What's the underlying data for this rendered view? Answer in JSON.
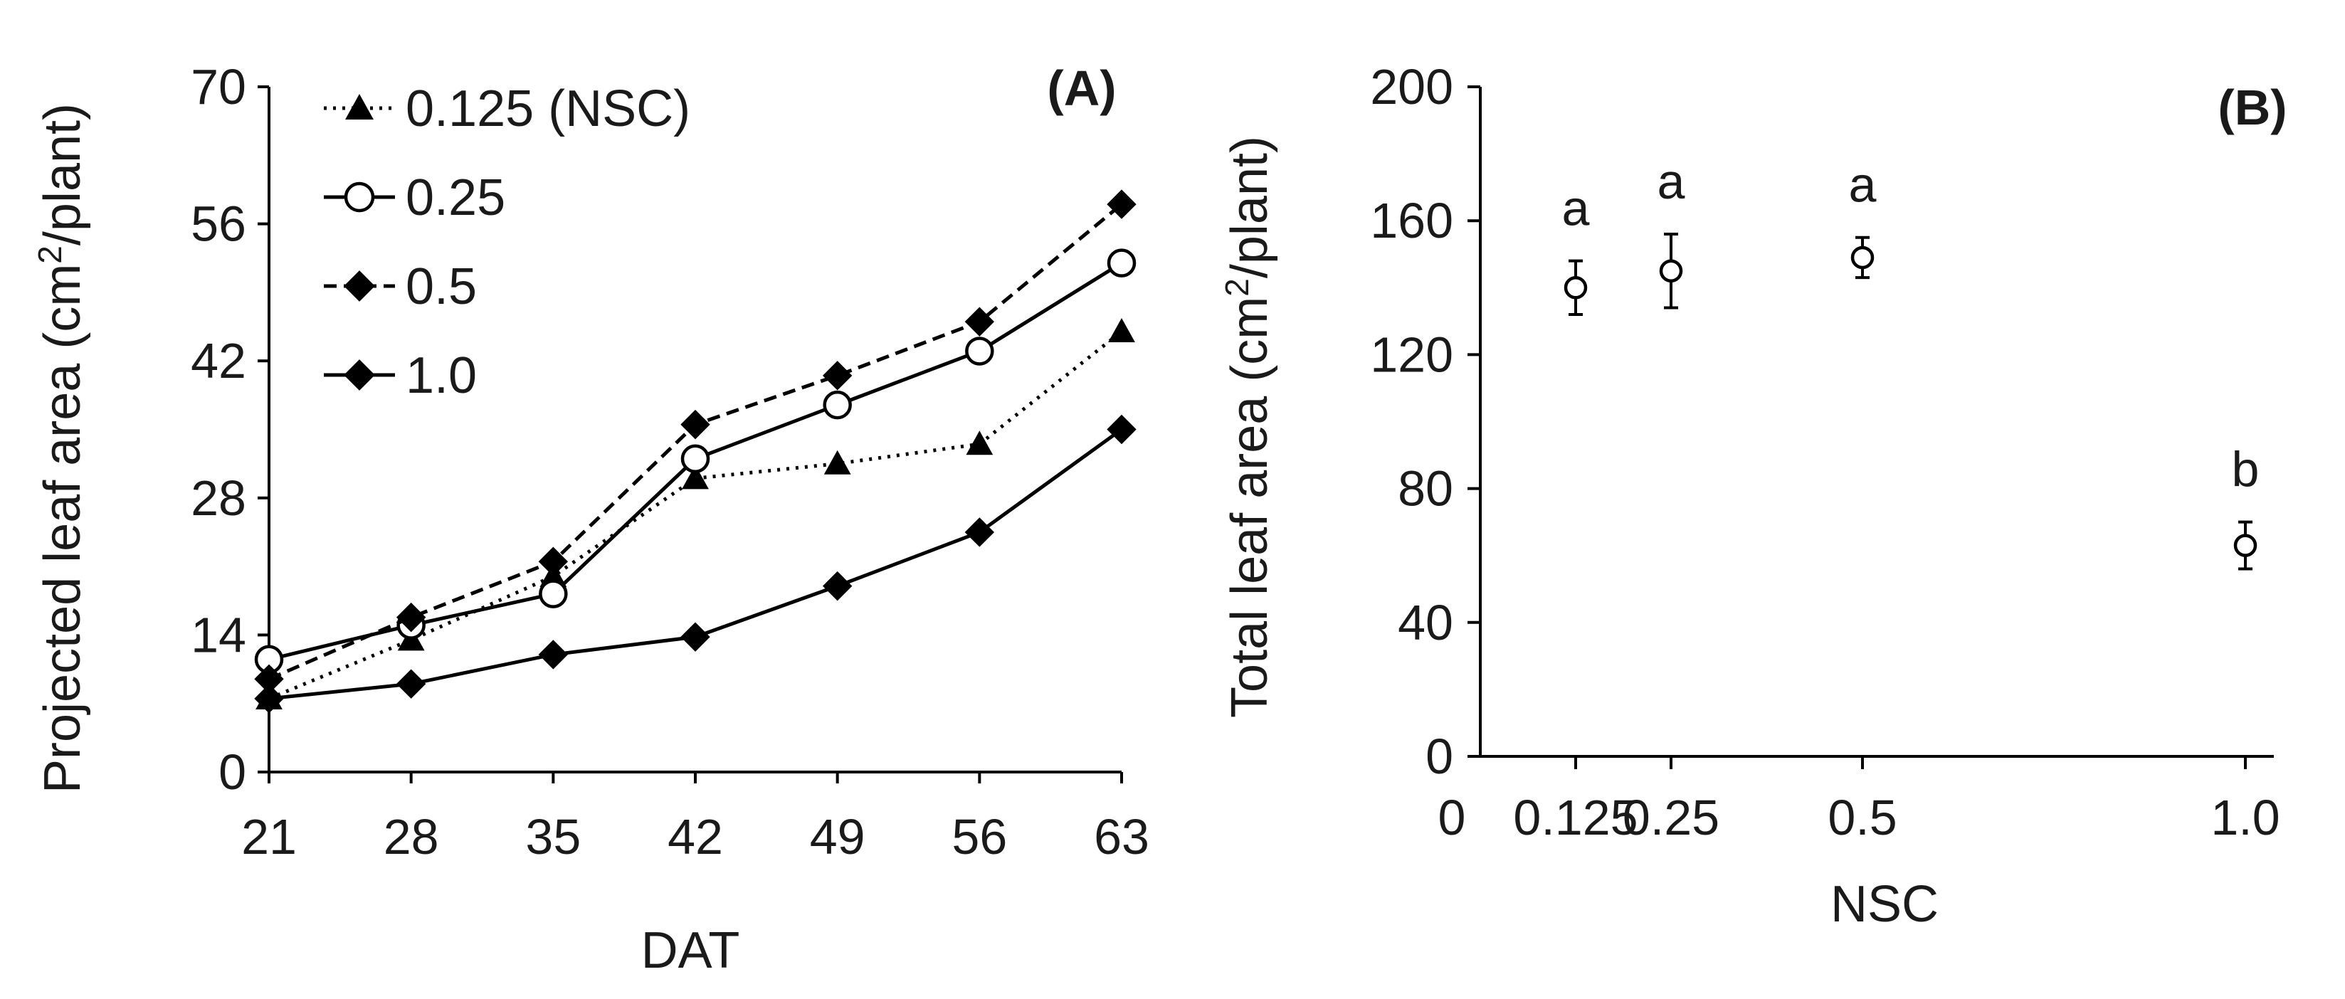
{
  "chart_data": [
    {
      "panel": "(A)",
      "type": "line",
      "xlabel": "DAT",
      "ylabel_parts": [
        "Projected leaf area (cm",
        "2",
        "/plant)"
      ],
      "x": [
        21,
        28,
        35,
        42,
        49,
        56,
        63
      ],
      "x_ticks": [
        "21",
        "28",
        "35",
        "42",
        "49",
        "56",
        "63"
      ],
      "ylim": [
        0,
        70
      ],
      "y_ticks": [
        "0",
        "14",
        "28",
        "42",
        "56",
        "70"
      ],
      "grid": false,
      "legend_position": "top-left",
      "series": [
        {
          "name": "0.125 (NSC)",
          "marker": "triangle",
          "line": "dotted",
          "values": [
            7.5,
            13.5,
            20,
            30,
            31.5,
            33.5,
            45
          ]
        },
        {
          "name": "0.25",
          "marker": "circle-open",
          "line": "solid",
          "values": [
            11.5,
            15,
            18.2,
            32,
            37.5,
            43,
            52
          ]
        },
        {
          "name": "0.5",
          "marker": "diamond",
          "line": "dashed",
          "values": [
            9.5,
            15.8,
            21.5,
            35.5,
            40.5,
            46,
            58
          ]
        },
        {
          "name": "1.0",
          "marker": "diamond",
          "line": "solid",
          "values": [
            7.5,
            9,
            12,
            13.8,
            19,
            24.5,
            35
          ]
        }
      ]
    },
    {
      "panel": "(B)",
      "type": "scatter",
      "xlabel": "NSC",
      "ylabel_parts": [
        "Total leaf area (cm",
        "2",
        "/plant)"
      ],
      "x_ticks": [
        "0",
        "0.125",
        "0.25",
        "0.5",
        "1.0"
      ],
      "ylim": [
        0,
        200
      ],
      "y_ticks": [
        "0",
        "40",
        "80",
        "120",
        "160",
        "200"
      ],
      "grid": false,
      "points": [
        {
          "x": 0.125,
          "y": 140,
          "err": 8,
          "letter": "a"
        },
        {
          "x": 0.25,
          "y": 145,
          "err": 11,
          "letter": "a"
        },
        {
          "x": 0.5,
          "y": 149,
          "err": 6,
          "letter": "a"
        },
        {
          "x": 1.0,
          "y": 63,
          "err": 7,
          "letter": "b"
        }
      ]
    }
  ]
}
